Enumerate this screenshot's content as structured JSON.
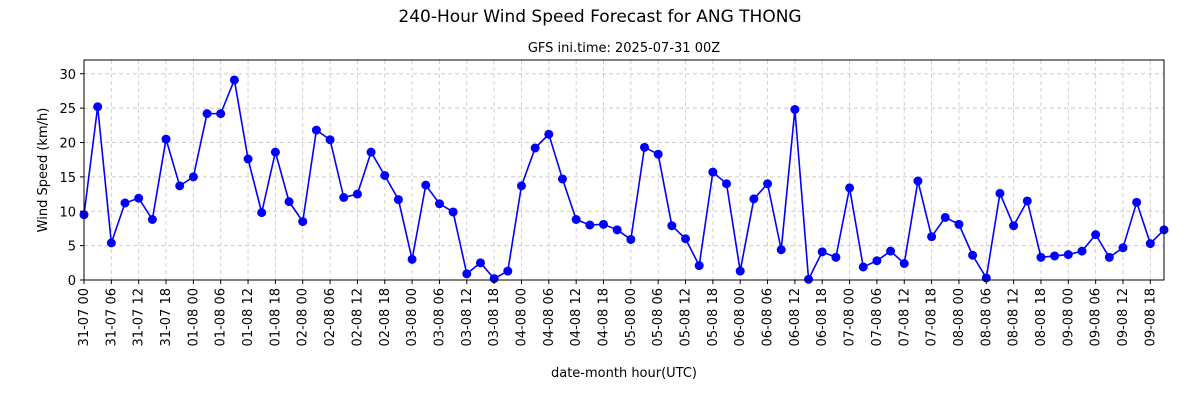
{
  "chart_data": {
    "type": "line",
    "title": "240-Hour Wind Speed Forecast for ANG THONG",
    "subtitle": "GFS ini.time: 2025-07-31 00Z",
    "xlabel": "date-month hour(UTC)",
    "ylabel": "Wind Speed (km/h)",
    "ylim": [
      0,
      32
    ],
    "yticks": [
      0,
      5,
      10,
      15,
      20,
      25,
      30
    ],
    "grid": true,
    "line_color": "#0000ff",
    "grid_color": "#cccccc",
    "x_tick_labels": [
      "31-07 00",
      "31-07 06",
      "31-07 12",
      "31-07 18",
      "01-08 00",
      "01-08 06",
      "01-08 12",
      "01-08 18",
      "02-08 00",
      "02-08 06",
      "02-08 12",
      "02-08 18",
      "03-08 00",
      "03-08 06",
      "03-08 12",
      "03-08 18",
      "04-08 00",
      "04-08 06",
      "04-08 12",
      "04-08 18",
      "05-08 00",
      "05-08 06",
      "05-08 12",
      "05-08 18",
      "06-08 00",
      "06-08 06",
      "06-08 12",
      "06-08 18",
      "07-08 00",
      "07-08 06",
      "07-08 12",
      "07-08 18",
      "08-08 00",
      "08-08 06",
      "08-08 12",
      "08-08 18",
      "09-08 00",
      "09-08 06",
      "09-08 12",
      "09-08 18"
    ],
    "series": [
      {
        "values": [
          9.5,
          25.2,
          5.4,
          11.2,
          11.9,
          8.8,
          20.5,
          13.7,
          15.0,
          24.2,
          24.2,
          29.1,
          17.6,
          9.8,
          18.6,
          11.4,
          8.5,
          21.8,
          20.4,
          12.0,
          12.5,
          18.6,
          15.2,
          11.7,
          3.0,
          13.8,
          11.1,
          9.9,
          0.9,
          2.5,
          0.2,
          1.3,
          13.7,
          19.2,
          21.2,
          14.7,
          8.8,
          8.0,
          8.1,
          7.3,
          5.9,
          19.3,
          18.3,
          7.9,
          6.0,
          2.1,
          15.7,
          14.0,
          1.3,
          11.8,
          14.0,
          4.4,
          24.8,
          0.1,
          4.1,
          3.3,
          13.4,
          1.9,
          2.8,
          4.2,
          2.4,
          14.4,
          6.3,
          9.1,
          8.1,
          3.6,
          0.3,
          12.6,
          7.9,
          11.5,
          3.3,
          3.5,
          3.7,
          4.2,
          6.6,
          3.3,
          4.7,
          11.3,
          5.3,
          7.3
        ]
      }
    ]
  }
}
